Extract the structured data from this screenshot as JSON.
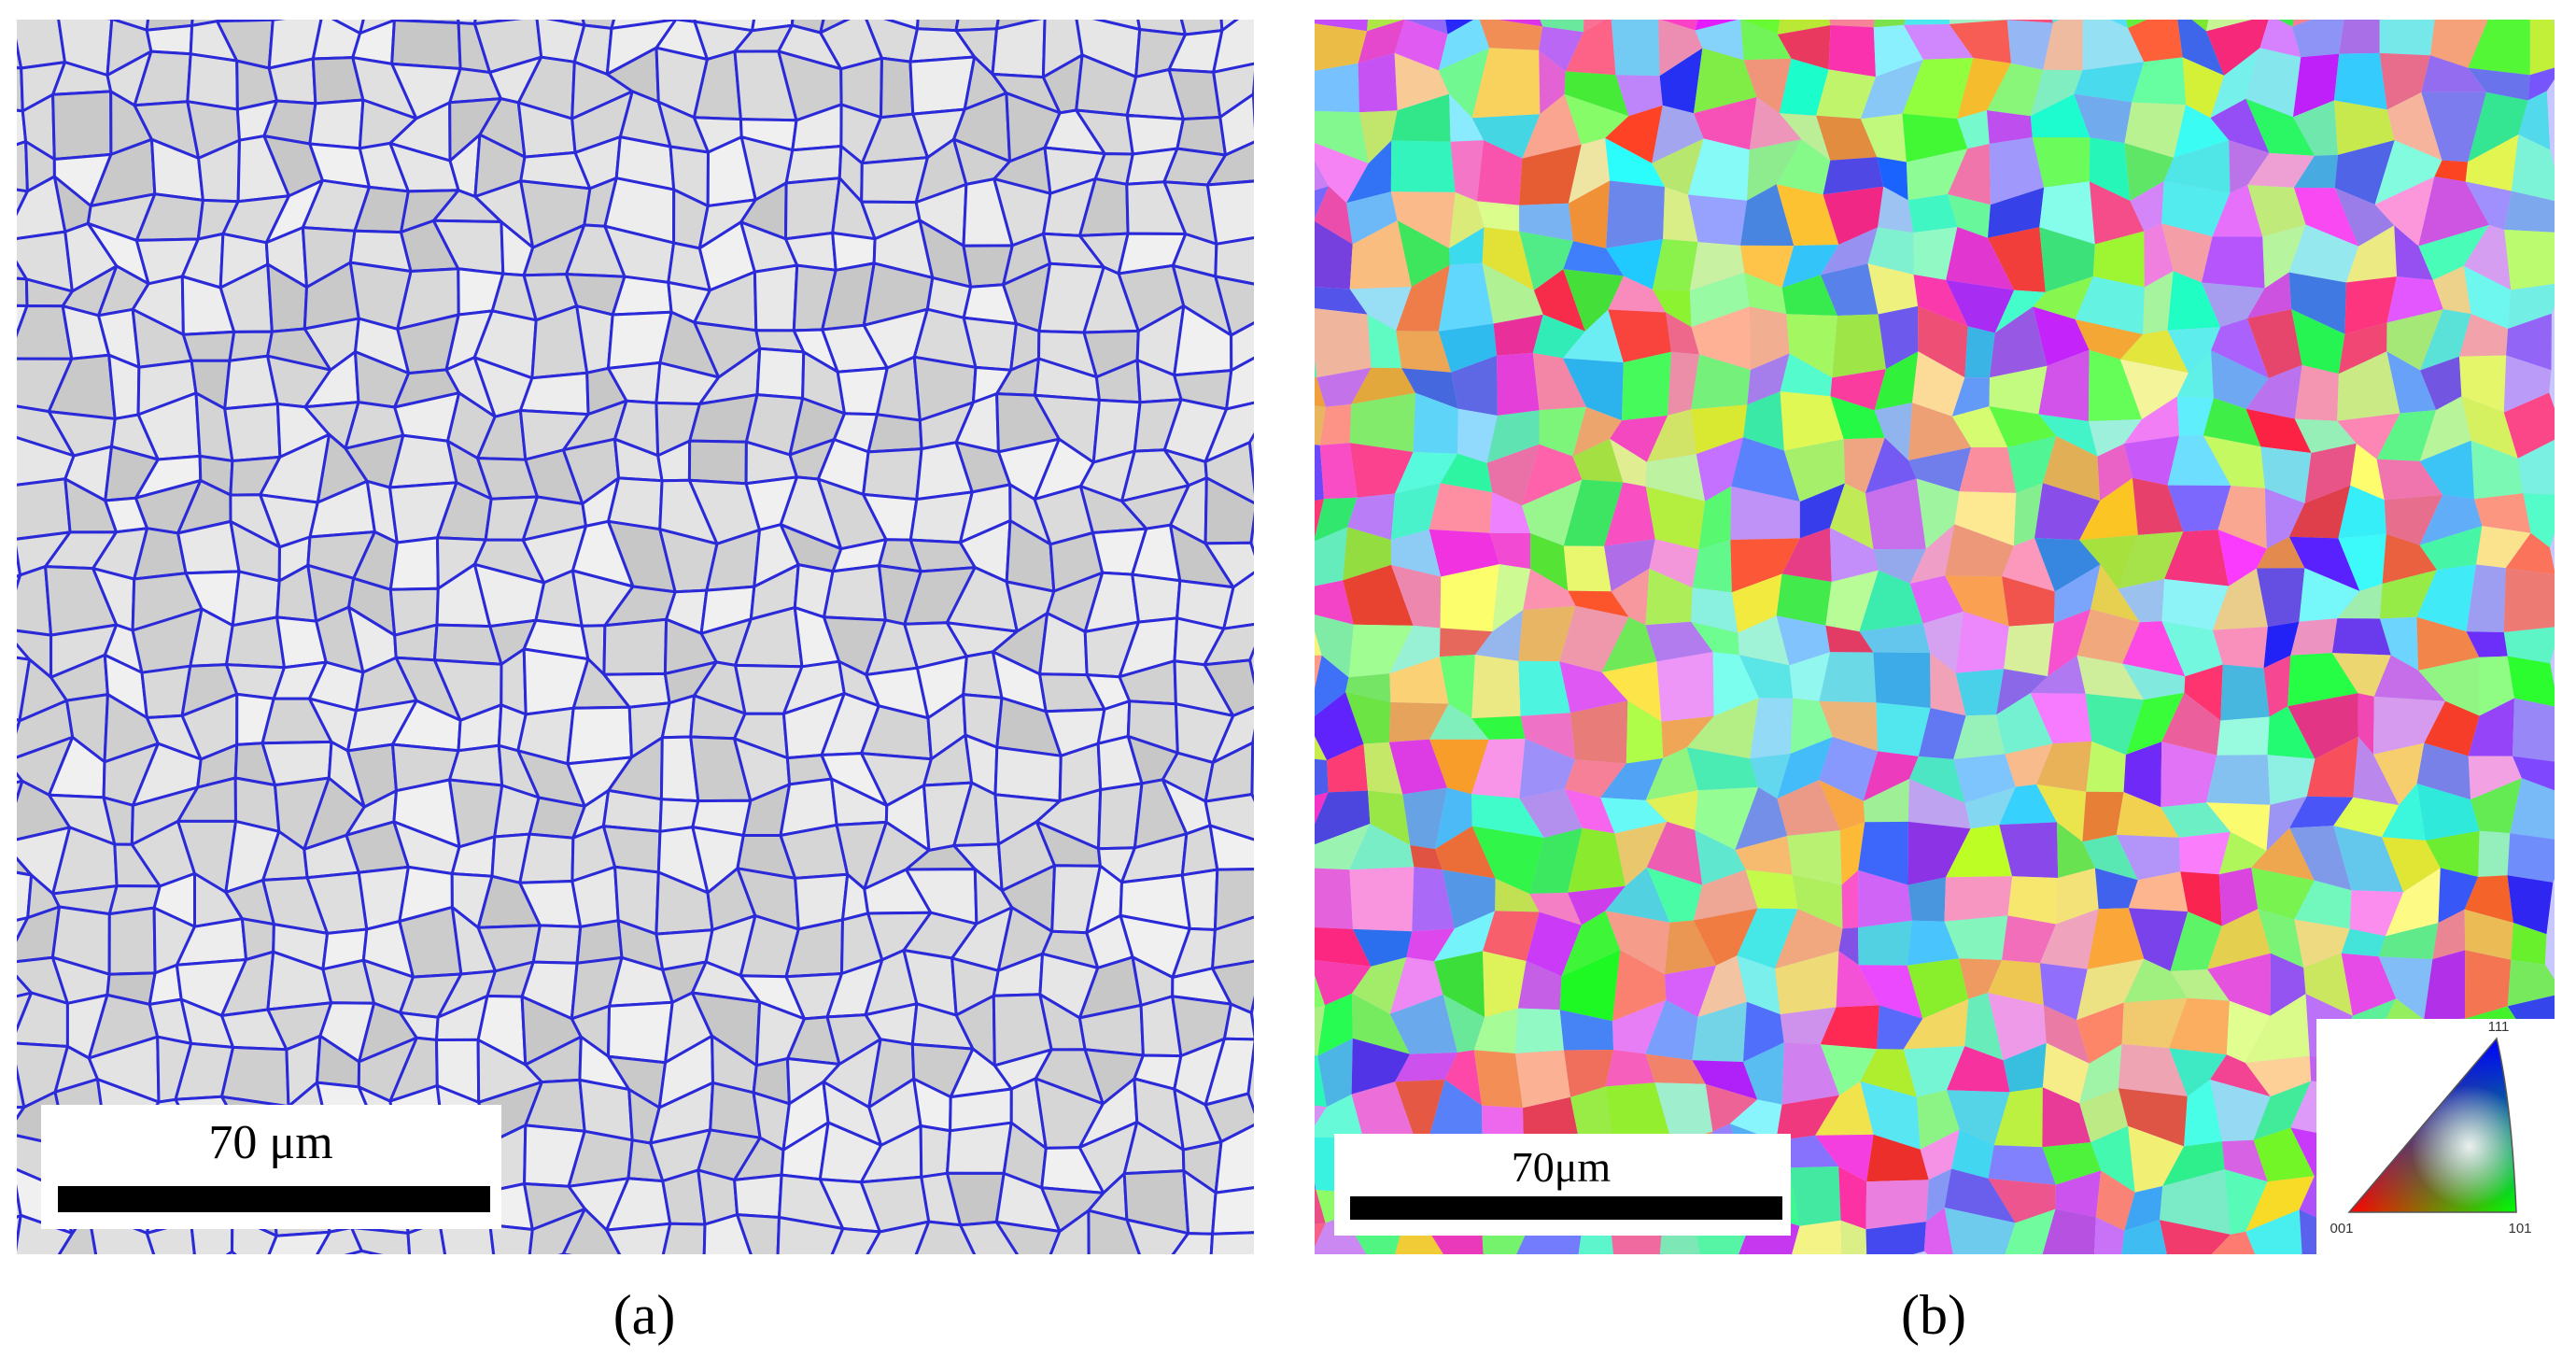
{
  "panels": [
    {
      "label": "(a)",
      "scale_bar": "70 μm"
    },
    {
      "label": "(b)",
      "scale_bar": "70μm",
      "legend": {
        "top": "111",
        "left": "001",
        "right": "101"
      }
    }
  ]
}
